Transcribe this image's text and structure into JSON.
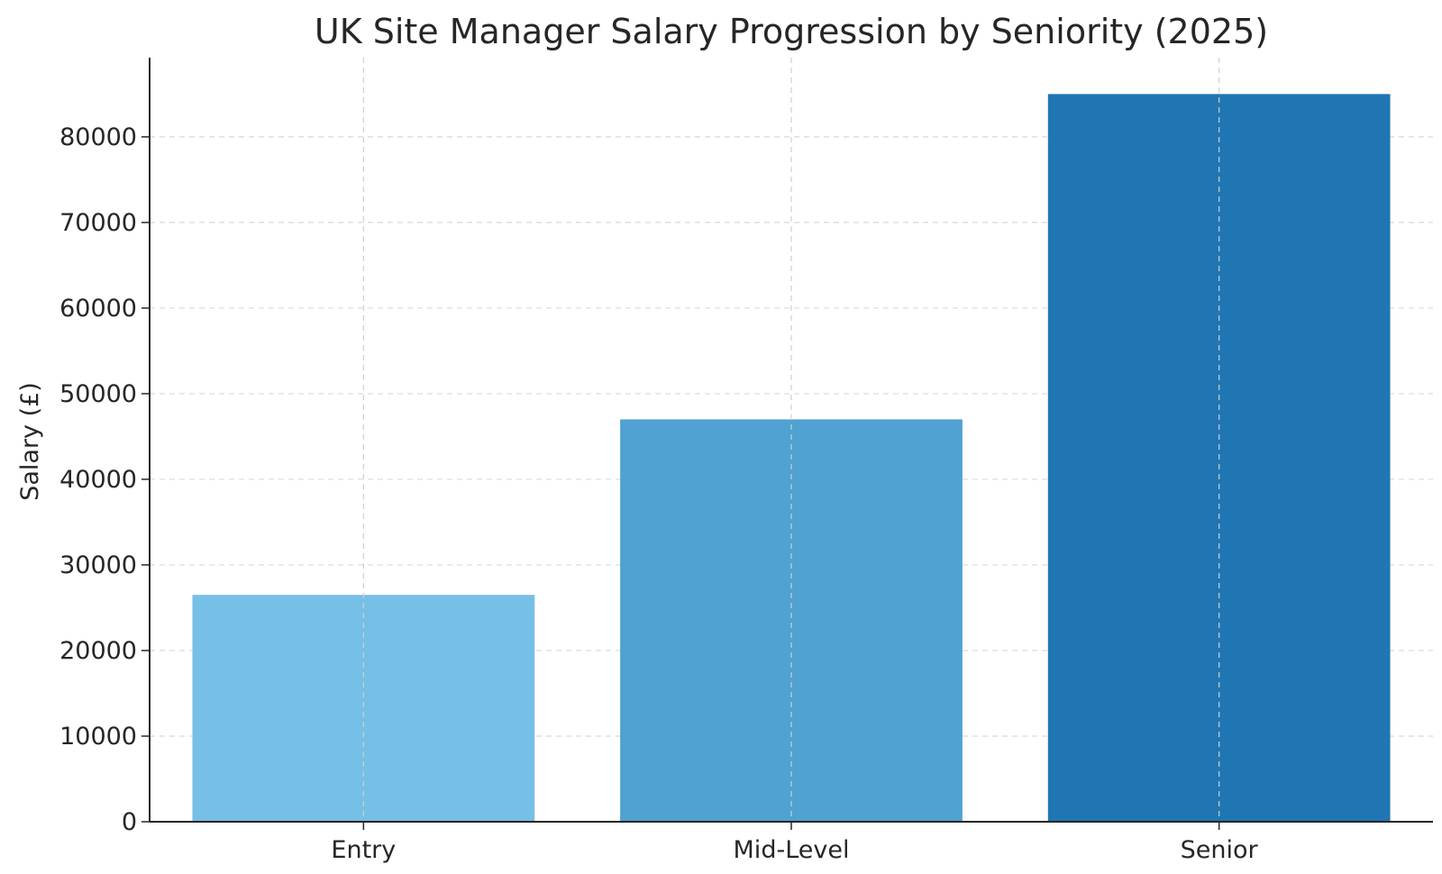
{
  "chart_data": {
    "type": "bar",
    "title": "UK Site Manager Salary Progression by Seniority (2025)",
    "xlabel": "",
    "ylabel": "Salary (£)",
    "categories": [
      "Entry",
      "Mid-Level",
      "Senior"
    ],
    "values": [
      26500,
      47000,
      85000
    ],
    "colors": [
      "#76bfe6",
      "#4fa2d1",
      "#2076b3"
    ],
    "ylim": [
      0,
      89250
    ],
    "yticks": [
      0,
      10000,
      20000,
      30000,
      40000,
      50000,
      60000,
      70000,
      80000
    ],
    "grid": true,
    "grid_style": "dashed",
    "legend": "none"
  }
}
